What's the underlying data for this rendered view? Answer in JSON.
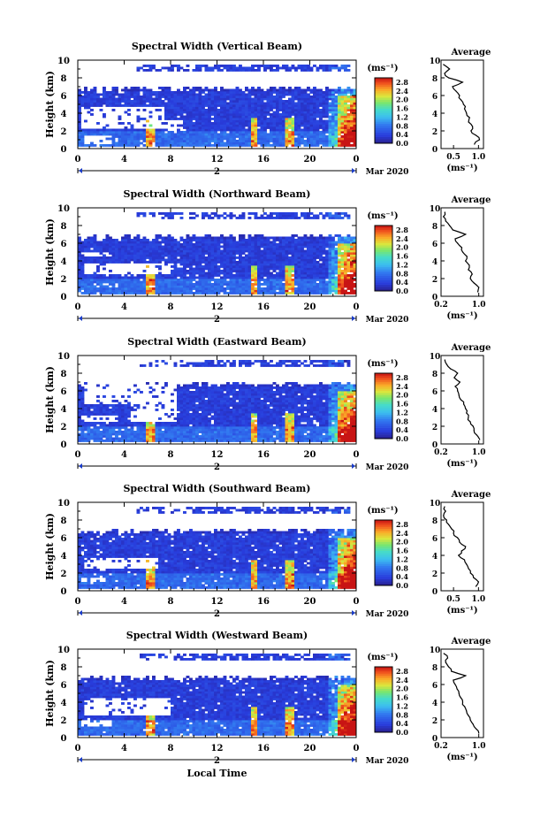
{
  "figure": {
    "xlabel": "Local Time",
    "ylabel": "Height (km)",
    "date_label": "2 Mar 2020",
    "colorbar_units": "(ms⁻¹)",
    "profile_title": "Average",
    "profile_xlabel": "(ms⁻¹)"
  },
  "chart_data": [
    {
      "type": "heatmap",
      "title": "Spectral Width (Vertical Beam)",
      "xlabel": "",
      "ylabel": "Height (km)",
      "x_ticks": [
        "0",
        "4",
        "8",
        "12",
        "16",
        "20",
        "0"
      ],
      "xlim": [
        0,
        24
      ],
      "ylim": [
        0,
        10
      ],
      "y_ticks": [
        "0",
        "2",
        "4",
        "6",
        "8",
        "10"
      ],
      "colorbar": {
        "units": "(ms⁻¹)",
        "ticks": [
          "0.0",
          "0.4",
          "0.8",
          "1.2",
          "1.6",
          "2.0",
          "2.4",
          "2.8"
        ],
        "range": [
          0,
          3.0
        ]
      },
      "profile": {
        "title": "Average",
        "xlabel": "(ms⁻¹)",
        "x_ticks": [
          "0.5",
          "1.0"
        ],
        "xlim": [
          0.25,
          1.1
        ],
        "heights": [
          0.5,
          1.0,
          1.5,
          2.0,
          2.5,
          3.0,
          3.5,
          4.0,
          4.5,
          5.0,
          5.5,
          6.0,
          6.5,
          7.0,
          7.5,
          8.0,
          8.5,
          9.0,
          9.5
        ],
        "values": [
          0.92,
          1.02,
          0.95,
          0.85,
          0.88,
          0.8,
          0.82,
          0.76,
          0.72,
          0.7,
          0.65,
          0.62,
          0.55,
          0.48,
          0.68,
          0.4,
          0.32,
          0.42,
          0.3
        ]
      }
    },
    {
      "type": "heatmap",
      "title": "Spectral Width (Northward Beam)",
      "xlabel": "",
      "ylabel": "Height (km)",
      "x_ticks": [
        "0",
        "4",
        "8",
        "12",
        "16",
        "20",
        "0"
      ],
      "xlim": [
        0,
        24
      ],
      "ylim": [
        0,
        10
      ],
      "y_ticks": [
        "0",
        "2",
        "4",
        "6",
        "8",
        "10"
      ],
      "colorbar": {
        "units": "(ms⁻¹)",
        "ticks": [
          "0.0",
          "0.4",
          "0.8",
          "1.2",
          "1.6",
          "2.0",
          "2.4",
          "2.8"
        ],
        "range": [
          0,
          3.0
        ]
      },
      "profile": {
        "title": "Average",
        "xlabel": "(ms⁻¹)",
        "x_ticks": [
          "0.2",
          "1.0"
        ],
        "xlim": [
          0.2,
          1.1
        ],
        "heights": [
          0.5,
          1.0,
          1.5,
          2.0,
          2.5,
          3.0,
          3.5,
          4.0,
          4.5,
          5.0,
          5.5,
          6.0,
          6.5,
          7.0,
          7.5,
          8.0,
          8.5,
          9.0,
          9.5
        ],
        "values": [
          0.98,
          1.0,
          0.9,
          0.82,
          0.86,
          0.78,
          0.8,
          0.72,
          0.75,
          0.66,
          0.64,
          0.55,
          0.5,
          0.72,
          0.45,
          0.38,
          0.3,
          0.25,
          0.28
        ]
      }
    },
    {
      "type": "heatmap",
      "title": "Spectral Width (Eastward Beam)",
      "xlabel": "",
      "ylabel": "Height (km)",
      "x_ticks": [
        "0",
        "4",
        "8",
        "12",
        "16",
        "20",
        "0"
      ],
      "xlim": [
        0,
        24
      ],
      "ylim": [
        0,
        10
      ],
      "y_ticks": [
        "0",
        "2",
        "4",
        "6",
        "8",
        "10"
      ],
      "colorbar": {
        "units": "(ms⁻¹)",
        "ticks": [
          "0.0",
          "0.4",
          "0.8",
          "1.2",
          "1.6",
          "2.0",
          "2.4",
          "2.8"
        ],
        "range": [
          0,
          3.0
        ]
      },
      "profile": {
        "title": "Average",
        "xlabel": "(ms⁻¹)",
        "x_ticks": [
          "0.2",
          "1.0"
        ],
        "xlim": [
          0.2,
          1.1
        ],
        "heights": [
          0.5,
          1.0,
          1.5,
          2.0,
          2.5,
          3.0,
          3.5,
          4.0,
          4.5,
          5.0,
          5.5,
          6.0,
          6.5,
          7.0,
          7.5,
          8.0,
          8.5,
          9.0,
          9.5
        ],
        "values": [
          1.02,
          0.96,
          0.9,
          0.88,
          0.82,
          0.78,
          0.74,
          0.72,
          0.68,
          0.62,
          0.58,
          0.55,
          0.5,
          0.6,
          0.48,
          0.55,
          0.4,
          0.32,
          0.28
        ]
      }
    },
    {
      "type": "heatmap",
      "title": "Spectral Width (Southward Beam)",
      "xlabel": "",
      "ylabel": "Height (km)",
      "x_ticks": [
        "0",
        "4",
        "8",
        "12",
        "16",
        "20",
        "0"
      ],
      "xlim": [
        0,
        24
      ],
      "ylim": [
        0,
        10
      ],
      "y_ticks": [
        "0",
        "2",
        "4",
        "6",
        "8",
        "10"
      ],
      "colorbar": {
        "units": "(ms⁻¹)",
        "ticks": [
          "0.0",
          "0.4",
          "0.8",
          "1.2",
          "1.6",
          "2.0",
          "2.4",
          "2.8"
        ],
        "range": [
          0,
          3.0
        ]
      },
      "profile": {
        "title": "Average",
        "xlabel": "(ms⁻¹)",
        "x_ticks": [
          "0.5",
          "1.0"
        ],
        "xlim": [
          0.25,
          1.1
        ],
        "heights": [
          0.5,
          1.0,
          1.5,
          2.0,
          2.5,
          3.0,
          3.5,
          4.0,
          4.5,
          5.0,
          5.5,
          6.0,
          6.5,
          7.0,
          7.5,
          8.0,
          8.5,
          9.0,
          9.5
        ],
        "values": [
          0.95,
          1.0,
          0.9,
          0.84,
          0.8,
          0.76,
          0.72,
          0.6,
          0.66,
          0.74,
          0.62,
          0.58,
          0.5,
          0.46,
          0.4,
          0.36,
          0.3,
          0.34,
          0.32
        ]
      }
    },
    {
      "type": "heatmap",
      "title": "Spectral Width (Westward Beam)",
      "xlabel": "Local Time",
      "ylabel": "Height (km)",
      "x_ticks": [
        "0",
        "4",
        "8",
        "12",
        "16",
        "20",
        "0"
      ],
      "xlim": [
        0,
        24
      ],
      "ylim": [
        0,
        10
      ],
      "y_ticks": [
        "0",
        "2",
        "4",
        "6",
        "8",
        "10"
      ],
      "colorbar": {
        "units": "(ms⁻¹)",
        "ticks": [
          "0.0",
          "0.4",
          "0.8",
          "1.2",
          "1.6",
          "2.0",
          "2.4",
          "2.8"
        ],
        "range": [
          0,
          3.0
        ]
      },
      "profile": {
        "title": "Average",
        "xlabel": "(ms⁻¹)",
        "x_ticks": [
          "0.2",
          "1.0"
        ],
        "xlim": [
          0.2,
          1.1
        ],
        "heights": [
          0.5,
          1.0,
          1.5,
          2.0,
          2.5,
          3.0,
          3.5,
          4.0,
          4.5,
          5.0,
          5.5,
          6.0,
          6.5,
          7.0,
          7.5,
          8.0,
          8.5,
          9.0,
          9.5
        ],
        "values": [
          1.0,
          0.94,
          0.88,
          0.82,
          0.78,
          0.74,
          0.7,
          0.66,
          0.62,
          0.58,
          0.54,
          0.5,
          0.46,
          0.72,
          0.42,
          0.36,
          0.3,
          0.34,
          0.26
        ]
      }
    }
  ]
}
